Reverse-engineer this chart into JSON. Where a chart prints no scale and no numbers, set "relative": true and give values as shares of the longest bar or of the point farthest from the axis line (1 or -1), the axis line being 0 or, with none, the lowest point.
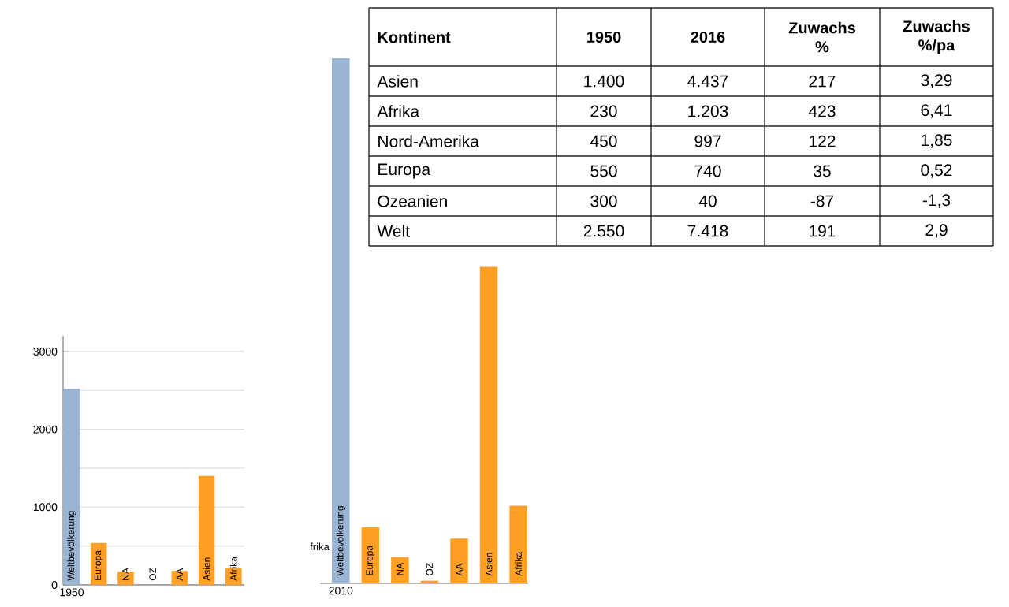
{
  "chart_data": [
    {
      "type": "bar",
      "xlabel": "1950",
      "categories": [
        "Weltbevölkerung",
        "Europa",
        "NA",
        "OZ",
        "AA",
        "Asien",
        "Afrika"
      ],
      "values": [
        2520,
        540,
        170,
        0,
        180,
        1400,
        220
      ],
      "colors": [
        "#9ab5d4",
        "#ffa024",
        "#ffa024",
        "#ffa024",
        "#ffa024",
        "#ffa024",
        "#ffa024"
      ],
      "ylim": [
        0,
        3200
      ],
      "yticks": [
        0,
        {
          "value": 500,
          "label": null
        },
        1000,
        {
          "value": 1500,
          "label": null
        },
        2000,
        {
          "value": 2500,
          "label": null
        },
        3000
      ],
      "grid": "y"
    },
    {
      "type": "bar",
      "relative": true,
      "xlabel": "2010",
      "categories": [
        "Weltbevölkerung",
        "Europa",
        "NA",
        "OZ",
        "AA",
        "Asien",
        "Afrika"
      ],
      "values": [
        1,
        0.107,
        0.05,
        0.005,
        0.085,
        0.603,
        0.148
      ],
      "colors": [
        "#9ab5d4",
        "#ffa024",
        "#ffa024",
        "#ffa024",
        "#ffa024",
        "#ffa024",
        "#ffa024"
      ],
      "annotations": [
        "frika"
      ]
    },
    {
      "type": "other",
      "categories": [
        "Kontinent",
        "1950",
        "2016",
        "Zuwachs %",
        "Zuwachs %/pa"
      ],
      "y_categories": [
        "Asien",
        "Afrika",
        "Nord-Amerika",
        "Europa",
        "Ozeanien",
        "Welt"
      ],
      "cell_labels": [
        [
          "1.400",
          "4.437",
          "217",
          "3,29"
        ],
        [
          "230",
          "1.203",
          "423",
          "6,41"
        ],
        [
          "450",
          "997",
          "122",
          "1,85"
        ],
        [
          "550",
          "740",
          "35",
          "0,52"
        ],
        [
          "300",
          "40",
          "-87",
          "-1,3"
        ],
        [
          "2.550",
          "7.418",
          "191",
          "2,9"
        ]
      ]
    }
  ]
}
